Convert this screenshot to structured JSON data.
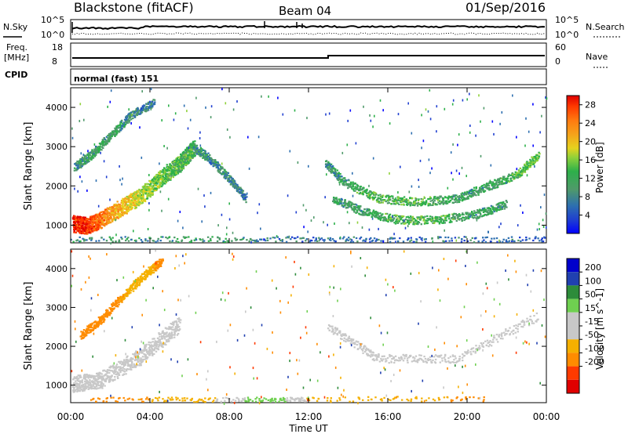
{
  "header": {
    "station": "Blackstone (fitACF)",
    "beam": "Beam 04",
    "date": "01/Sep/2016"
  },
  "noise_panel": {
    "left_label": "N.Sky",
    "right_label": "N.Search",
    "left_ticks": [
      "10^5",
      "10^0"
    ],
    "right_ticks": [
      "10^5",
      "10^0"
    ]
  },
  "freq_panel": {
    "left_label_line1": "Freq.",
    "left_label_line2": "[MHz]",
    "right_label": "Nave",
    "left_ticks": [
      "18",
      "8"
    ],
    "right_ticks": [
      "60",
      "0"
    ]
  },
  "cpid": {
    "label": "CPID",
    "value": "normal (fast) 151"
  },
  "x_axis": {
    "label": "Time UT",
    "ticks": [
      "00:00",
      "04:00",
      "08:00",
      "12:00",
      "16:00",
      "20:00",
      "00:00"
    ]
  },
  "colors": {
    "power_scale": [
      "#0000ff",
      "#1f3fd0",
      "#2d6fb0",
      "#4f9a6a",
      "#2db04a",
      "#8fd13a",
      "#e6d21e",
      "#f5a21a",
      "#ff7a10",
      "#ff3a00",
      "#e00000"
    ],
    "velocity_scale": [
      "#e00000",
      "#ff3a00",
      "#ff8c00",
      "#f5b000",
      "#c8c8c8",
      "#c8c8c8",
      "#6fd050",
      "#2d8c3a",
      "#2040b0",
      "#0000cc"
    ]
  },
  "chart_data": [
    {
      "type": "heatmap",
      "title": "Power",
      "ylabel": "Slant Range [km]",
      "xlabel": "",
      "yticks": [
        "1000",
        "2000",
        "3000",
        "4000"
      ],
      "ylim": [
        550,
        4500
      ],
      "xlim_hours": [
        0,
        24
      ],
      "colorbar": {
        "label": "Power [dB]",
        "ticks": [
          "4",
          "8",
          "12",
          "16",
          "20",
          "24",
          "28"
        ],
        "range": [
          0,
          30
        ]
      },
      "features": [
        {
          "name": "dense-low-arc",
          "points": [
            [
              0.1,
              1050,
              28
            ],
            [
              0.8,
              1000,
              28
            ],
            [
              1.5,
              1150,
              24
            ],
            [
              2.5,
              1450,
              20
            ],
            [
              3.5,
              1750,
              16
            ],
            [
              4.5,
              2200,
              14
            ],
            [
              5.5,
              2600,
              12
            ],
            [
              6.2,
              3000,
              12
            ]
          ]
        },
        {
          "name": "upper-band",
          "points": [
            [
              0.2,
              2500,
              8
            ],
            [
              1.0,
              2800,
              10
            ],
            [
              2.0,
              3300,
              10
            ],
            [
              3.0,
              3800,
              8
            ],
            [
              4.2,
              4150,
              6
            ]
          ]
        },
        {
          "name": "morning-descending",
          "points": [
            [
              6.2,
              3000,
              10
            ],
            [
              7.0,
              2700,
              8
            ],
            [
              8.0,
              2200,
              8
            ],
            [
              8.8,
              1700,
              6
            ]
          ]
        },
        {
          "name": "u-arc-outer",
          "points": [
            [
              12.8,
              2600,
              8
            ],
            [
              13.8,
              2100,
              10
            ],
            [
              15.5,
              1700,
              12
            ],
            [
              17.5,
              1600,
              12
            ],
            [
              19.5,
              1700,
              10
            ],
            [
              21.0,
              2000,
              10
            ],
            [
              22.5,
              2300,
              12
            ],
            [
              23.6,
              2800,
              14
            ]
          ]
        },
        {
          "name": "u-arc-inner",
          "points": [
            [
              13.2,
              1700,
              10
            ],
            [
              14.8,
              1350,
              10
            ],
            [
              16.5,
              1150,
              12
            ],
            [
              18.5,
              1150,
              12
            ],
            [
              20.5,
              1300,
              10
            ],
            [
              22.0,
              1550,
              10
            ]
          ]
        },
        {
          "name": "near-range-ground",
          "points": [
            [
              0,
              620,
              8
            ],
            [
              6,
              620,
              10
            ],
            [
              12,
              620,
              6
            ],
            [
              18,
              620,
              6
            ],
            [
              24,
              620,
              6
            ]
          ]
        }
      ]
    },
    {
      "type": "heatmap",
      "title": "Velocity",
      "ylabel": "Slant Range [km]",
      "xlabel": "Time UT",
      "yticks": [
        "1000",
        "2000",
        "3000",
        "4000"
      ],
      "ylim": [
        550,
        4500
      ],
      "xlim_hours": [
        0,
        24
      ],
      "colorbar": {
        "label": "Velocity [m s^-1]",
        "ticks": [
          "200",
          "100",
          "50",
          "15",
          "-15",
          "-50",
          "-100",
          "-200"
        ],
        "range": [
          -250,
          250
        ]
      },
      "features": [
        {
          "name": "ground-scatter-grey",
          "points": [
            [
              0.1,
              1050,
              0
            ],
            [
              1.5,
              1150,
              0
            ],
            [
              3.5,
              1750,
              0
            ],
            [
              5.5,
              2600,
              0
            ]
          ]
        },
        {
          "name": "orange-streaks",
          "points": [
            [
              0.5,
              2300,
              -80
            ],
            [
              1.5,
              2700,
              -60
            ],
            [
              2.6,
              3300,
              -50
            ],
            [
              3.8,
              3900,
              -40
            ],
            [
              4.6,
              4200,
              -60
            ]
          ]
        },
        {
          "name": "u-arc-grey",
          "points": [
            [
              13.0,
              2500,
              0
            ],
            [
              15.5,
              1700,
              0
            ],
            [
              19.5,
              1700,
              0
            ],
            [
              23.6,
              2800,
              0
            ]
          ]
        },
        {
          "name": "near-range-mixed",
          "points": [
            [
              1,
              600,
              -60
            ],
            [
              6,
              600,
              -40
            ],
            [
              10,
              600,
              40
            ],
            [
              12,
              600,
              -20
            ],
            [
              21,
              650,
              -60
            ]
          ]
        }
      ]
    }
  ]
}
